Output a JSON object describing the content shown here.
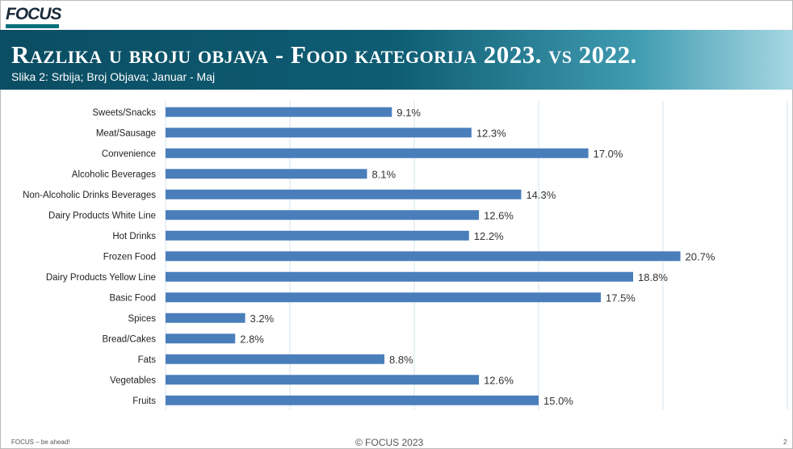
{
  "logo": {
    "text": "FOCUS"
  },
  "header": {
    "title": "Razlika u broju objava - Food kategorija 2023.  vs  2022.",
    "subtitle": "Slika 2: Srbija; Broj Objava; Januar - Maj"
  },
  "footer": {
    "left": "FOCUS – be ahead!",
    "center": "© FOCUS 2023",
    "right": "2"
  },
  "colors": {
    "bar": "#4a7ebb",
    "banner": "#0e5d73",
    "grid": "#d6e3ee"
  },
  "chart_data": {
    "type": "bar",
    "orientation": "horizontal",
    "categories": [
      "Sweets/Snacks",
      "Meat/Sausage",
      "Convenience",
      "Alcoholic Beverages",
      "Non-Alcoholic Drinks Beverages",
      "Dairy Products White Line",
      "Hot Drinks",
      "Frozen Food",
      "Dairy Products Yellow Line",
      "Basic Food",
      "Spices",
      "Bread/Cakes",
      "Fats",
      "Vegetables",
      "Fruits"
    ],
    "values": [
      9.1,
      12.3,
      17.0,
      8.1,
      14.3,
      12.6,
      12.2,
      20.7,
      18.8,
      17.5,
      3.2,
      2.8,
      8.8,
      12.6,
      15.0
    ],
    "labels": [
      "9.1%",
      "12.3%",
      "17.0%",
      "8.1%",
      "14.3%",
      "12.6%",
      "12.2%",
      "20.7%",
      "18.8%",
      "17.5%",
      "3.2%",
      "2.8%",
      "8.8%",
      "12.6%",
      "15.0%"
    ],
    "xlim": [
      0,
      25
    ],
    "grid": true,
    "legend": "none"
  }
}
